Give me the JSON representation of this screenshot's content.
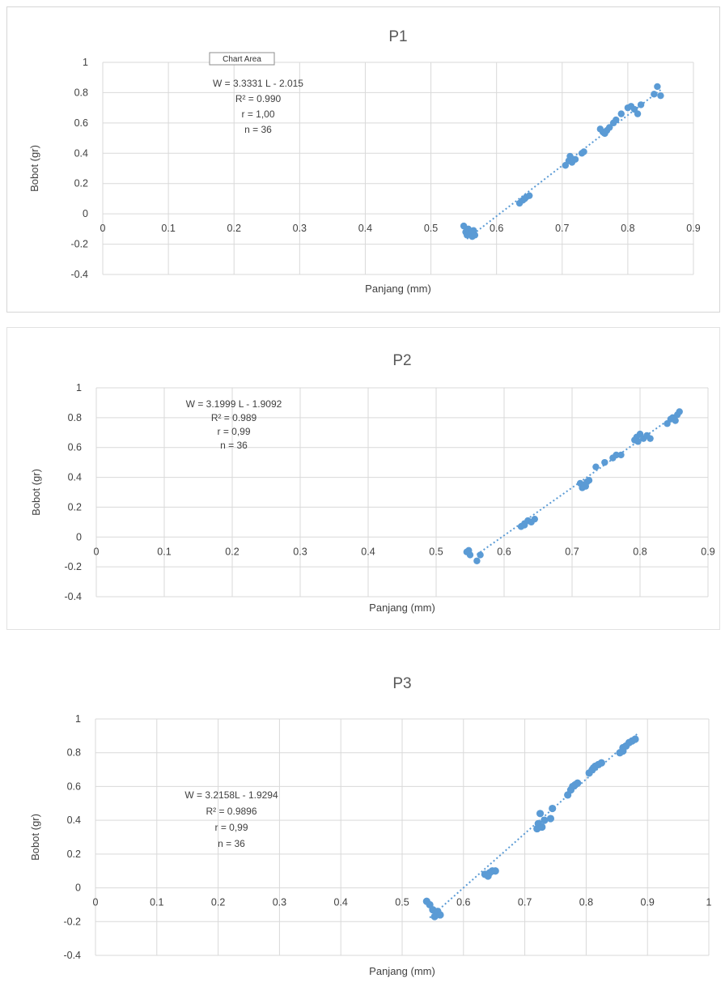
{
  "chart_data": [
    {
      "type": "scatter",
      "title": "P1",
      "xlabel": "Panjang (mm)",
      "ylabel": "Bobot (gr)",
      "xlim": [
        0,
        0.9
      ],
      "ylim": [
        -0.4,
        1
      ],
      "x_ticks": [
        "0",
        "0.1",
        "0.2",
        "0.3",
        "0.4",
        "0.5",
        "0.6",
        "0.7",
        "0.8",
        "0.9"
      ],
      "y_ticks": [
        "1",
        "0.8",
        "0.6",
        "0.4",
        "0.2",
        "0",
        "-0.2",
        "-0.4"
      ],
      "grid": true,
      "tooltip": "Chart Area",
      "annotation": [
        "W = 3.3331 L - 2.015",
        "R² = 0.990",
        "r = 1,00",
        "n = 36"
      ],
      "trendline": {
        "slope": 3.3331,
        "intercept": -2.015,
        "x_range": [
          0.555,
          0.85
        ]
      },
      "points": [
        [
          0.55,
          -0.08
        ],
        [
          0.553,
          -0.12
        ],
        [
          0.555,
          -0.14
        ],
        [
          0.557,
          -0.1
        ],
        [
          0.56,
          -0.13
        ],
        [
          0.563,
          -0.15
        ],
        [
          0.565,
          -0.11
        ],
        [
          0.567,
          -0.14
        ],
        [
          0.635,
          0.07
        ],
        [
          0.64,
          0.09
        ],
        [
          0.643,
          0.1
        ],
        [
          0.645,
          0.11
        ],
        [
          0.65,
          0.12
        ],
        [
          0.705,
          0.32
        ],
        [
          0.71,
          0.35
        ],
        [
          0.712,
          0.38
        ],
        [
          0.715,
          0.34
        ],
        [
          0.72,
          0.36
        ],
        [
          0.73,
          0.4
        ],
        [
          0.733,
          0.41
        ],
        [
          0.758,
          0.56
        ],
        [
          0.762,
          0.54
        ],
        [
          0.765,
          0.53
        ],
        [
          0.768,
          0.55
        ],
        [
          0.772,
          0.57
        ],
        [
          0.778,
          0.6
        ],
        [
          0.782,
          0.62
        ],
        [
          0.79,
          0.66
        ],
        [
          0.8,
          0.7
        ],
        [
          0.805,
          0.71
        ],
        [
          0.81,
          0.69
        ],
        [
          0.815,
          0.66
        ],
        [
          0.82,
          0.72
        ],
        [
          0.84,
          0.79
        ],
        [
          0.845,
          0.84
        ],
        [
          0.85,
          0.78
        ]
      ]
    },
    {
      "type": "scatter",
      "title": "P2",
      "xlabel": "Panjang (mm)",
      "ylabel": "Bobot (gr)",
      "xlim": [
        0,
        0.9
      ],
      "ylim": [
        -0.4,
        1
      ],
      "x_ticks": [
        "0",
        "0.1",
        "0.2",
        "0.3",
        "0.4",
        "0.5",
        "0.6",
        "0.7",
        "0.8",
        "0.9"
      ],
      "y_ticks": [
        "1",
        "0.8",
        "0.6",
        "0.4",
        "0.2",
        "0",
        "-0.2",
        "-0.4"
      ],
      "grid": true,
      "annotation": [
        "W = 3.1999 L - 1.9092",
        "R² = 0.989",
        "r = 0,99",
        "n = 36"
      ],
      "trendline": {
        "slope": 3.1999,
        "intercept": -1.9092,
        "x_range": [
          0.56,
          0.855
        ]
      },
      "points": [
        [
          0.545,
          -0.1
        ],
        [
          0.548,
          -0.09
        ],
        [
          0.55,
          -0.12
        ],
        [
          0.56,
          -0.16
        ],
        [
          0.565,
          -0.12
        ],
        [
          0.625,
          0.07
        ],
        [
          0.63,
          0.09
        ],
        [
          0.635,
          0.11
        ],
        [
          0.64,
          0.1
        ],
        [
          0.645,
          0.12
        ],
        [
          0.712,
          0.36
        ],
        [
          0.715,
          0.33
        ],
        [
          0.718,
          0.35
        ],
        [
          0.722,
          0.37
        ],
        [
          0.725,
          0.38
        ],
        [
          0.735,
          0.47
        ],
        [
          0.748,
          0.5
        ],
        [
          0.76,
          0.53
        ],
        [
          0.765,
          0.55
        ],
        [
          0.772,
          0.55
        ],
        [
          0.792,
          0.65
        ],
        [
          0.795,
          0.67
        ],
        [
          0.8,
          0.69
        ],
        [
          0.805,
          0.66
        ],
        [
          0.81,
          0.68
        ],
        [
          0.815,
          0.66
        ],
        [
          0.84,
          0.76
        ],
        [
          0.845,
          0.79
        ],
        [
          0.848,
          0.8
        ],
        [
          0.852,
          0.78
        ],
        [
          0.855,
          0.82
        ],
        [
          0.858,
          0.84
        ],
        [
          0.63,
          0.08
        ],
        [
          0.72,
          0.34
        ],
        [
          0.797,
          0.64
        ],
        [
          0.85,
          0.79
        ]
      ]
    },
    {
      "type": "scatter",
      "title": "P3",
      "xlabel": "Panjang (mm)",
      "ylabel": "Bobot (gr)",
      "xlim": [
        0,
        1
      ],
      "ylim": [
        -0.4,
        1
      ],
      "x_ticks": [
        "0",
        "0.1",
        "0.2",
        "0.3",
        "0.4",
        "0.5",
        "0.6",
        "0.7",
        "0.8",
        "0.9",
        "1"
      ],
      "y_ticks": [
        "1",
        "0.8",
        "0.6",
        "0.4",
        "0.2",
        "0",
        "-0.2",
        "-0.4"
      ],
      "grid": true,
      "annotation": [
        "W = 3.2158L - 1.9294",
        "R² = 0.9896",
        "r = 0,99",
        "n = 36"
      ],
      "trendline": {
        "slope": 3.2158,
        "intercept": -1.9294,
        "x_range": [
          0.545,
          0.885
        ]
      },
      "points": [
        [
          0.54,
          -0.08
        ],
        [
          0.545,
          -0.1
        ],
        [
          0.55,
          -0.13
        ],
        [
          0.553,
          -0.17
        ],
        [
          0.558,
          -0.14
        ],
        [
          0.562,
          -0.16
        ],
        [
          0.635,
          0.08
        ],
        [
          0.64,
          0.07
        ],
        [
          0.643,
          0.09
        ],
        [
          0.647,
          0.1
        ],
        [
          0.652,
          0.1
        ],
        [
          0.72,
          0.35
        ],
        [
          0.722,
          0.38
        ],
        [
          0.725,
          0.44
        ],
        [
          0.728,
          0.36
        ],
        [
          0.732,
          0.4
        ],
        [
          0.742,
          0.41
        ],
        [
          0.745,
          0.47
        ],
        [
          0.77,
          0.55
        ],
        [
          0.775,
          0.58
        ],
        [
          0.778,
          0.6
        ],
        [
          0.782,
          0.61
        ],
        [
          0.786,
          0.62
        ],
        [
          0.805,
          0.68
        ],
        [
          0.81,
          0.7
        ],
        [
          0.815,
          0.72
        ],
        [
          0.82,
          0.73
        ],
        [
          0.825,
          0.74
        ],
        [
          0.855,
          0.8
        ],
        [
          0.86,
          0.83
        ],
        [
          0.865,
          0.84
        ],
        [
          0.87,
          0.86
        ],
        [
          0.875,
          0.87
        ],
        [
          0.88,
          0.88
        ],
        [
          0.86,
          0.81
        ],
        [
          0.812,
          0.71
        ]
      ]
    }
  ]
}
